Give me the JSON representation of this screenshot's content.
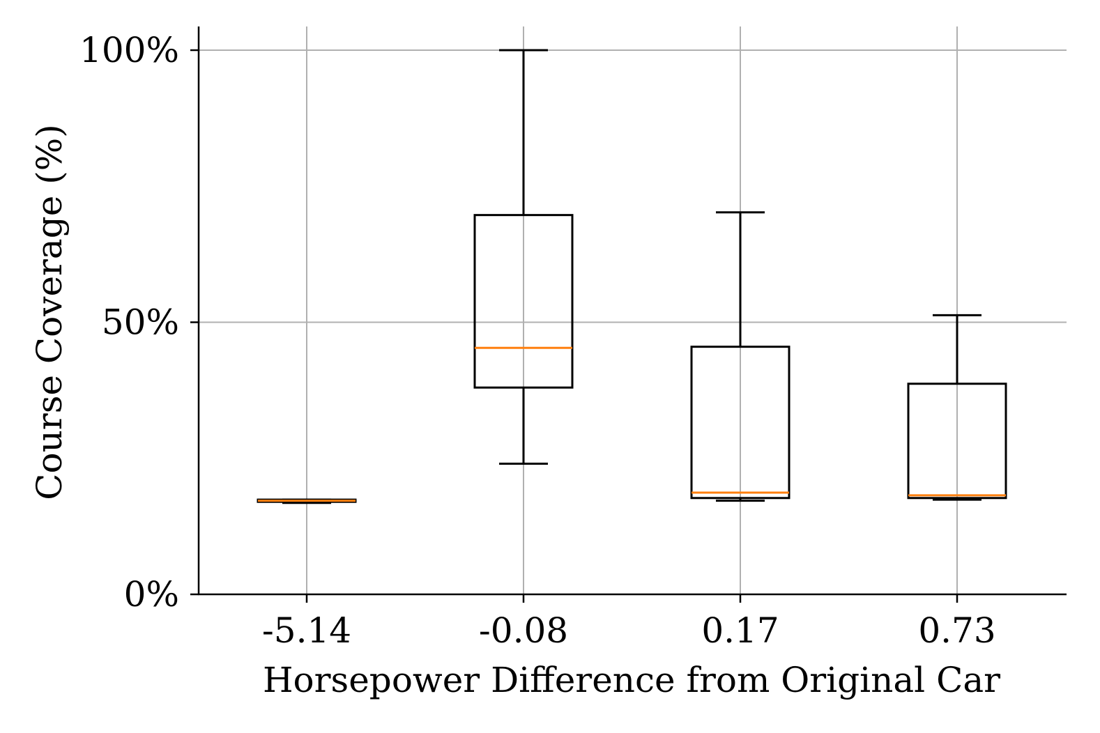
{
  "chart_data": {
    "type": "box",
    "xlabel": "Horsepower Difference from Original Car",
    "ylabel": "Course Coverage (%)",
    "ylim": [
      0,
      100
    ],
    "yticks": [
      {
        "value": 0,
        "label": "0%"
      },
      {
        "value": 50,
        "label": "50%"
      },
      {
        "value": 100,
        "label": "100%"
      }
    ],
    "categories": [
      "-5.14",
      "-0.08",
      "0.17",
      "0.73"
    ],
    "boxes": [
      {
        "category": "-5.14",
        "whisker_low": 16.8,
        "q1": 17.0,
        "median": 17.2,
        "q3": 17.4,
        "whisker_high": 17.4
      },
      {
        "category": "-0.08",
        "whisker_low": 24.0,
        "q1": 38.0,
        "median": 45.3,
        "q3": 69.7,
        "whisker_high": 100.0
      },
      {
        "category": "0.17",
        "whisker_low": 17.2,
        "q1": 17.7,
        "median": 18.7,
        "q3": 45.5,
        "whisker_high": 70.2
      },
      {
        "category": "0.73",
        "whisker_low": 17.4,
        "q1": 17.7,
        "median": 18.2,
        "q3": 38.7,
        "whisker_high": 51.3
      }
    ],
    "grid": true,
    "box_color": "#000000",
    "median_color": "#ff7f0e",
    "grid_color": "#b0b0b0"
  }
}
